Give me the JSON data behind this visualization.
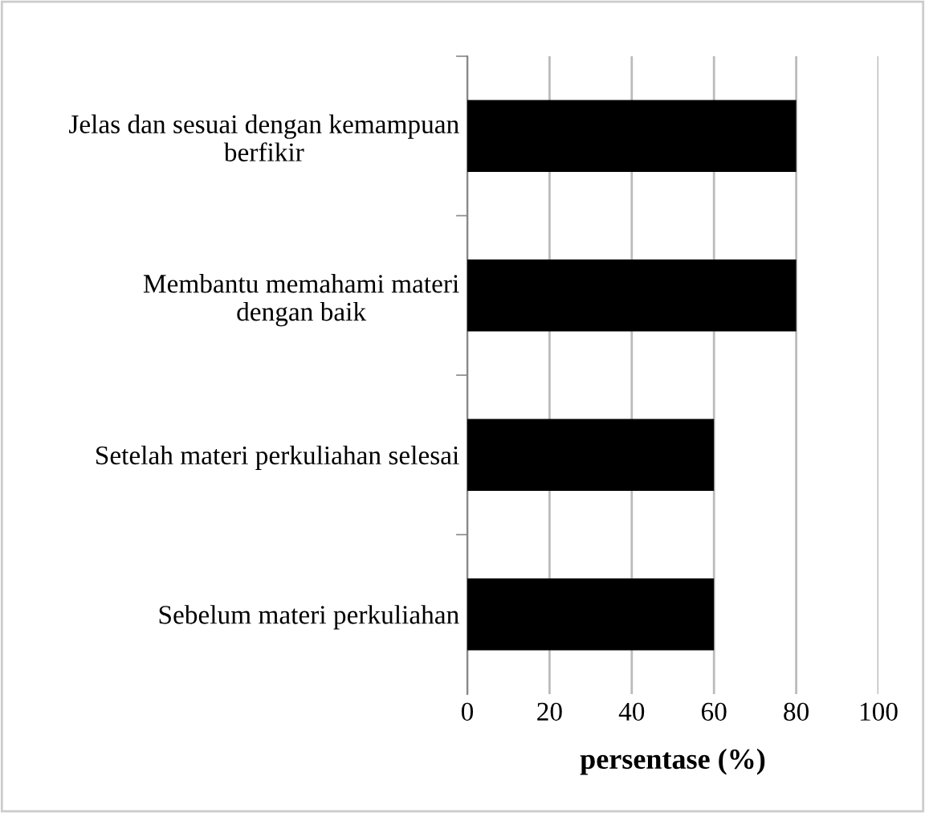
{
  "chart_data": {
    "type": "bar",
    "orientation": "horizontal",
    "categories": [
      "Jelas dan sesuai dengan kemampuan\nberfikir",
      "Membantu memahami materi\ndengan baik",
      "Setelah materi perkuliahan selesai",
      "Sebelum materi perkuliahan"
    ],
    "values": [
      80,
      80,
      60,
      60
    ],
    "color": "#000000",
    "xlabel": "persentase (%)",
    "xlim": [
      0,
      100
    ],
    "xticks": [
      0,
      20,
      40,
      60,
      80,
      100
    ],
    "grid": "x"
  }
}
